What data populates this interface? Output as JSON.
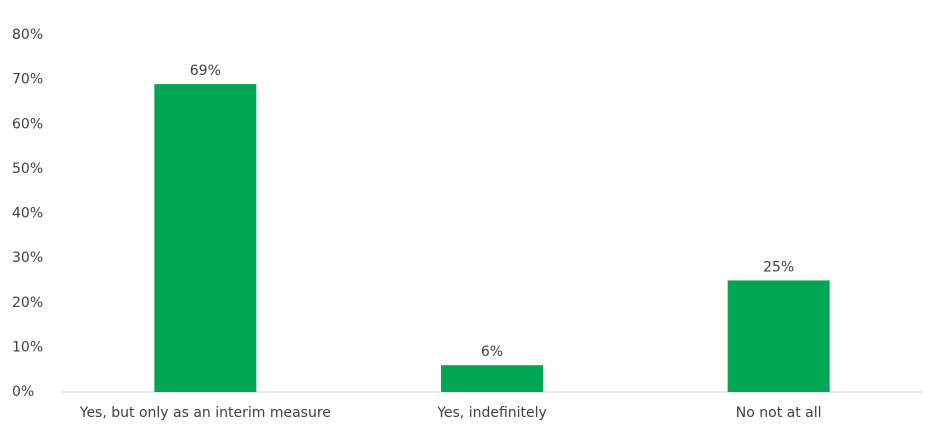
{
  "chart_data": {
    "type": "bar",
    "categories": [
      "Yes, but only as an interim measure",
      "Yes, indefinitely",
      "No not at all"
    ],
    "values": [
      69,
      6,
      25
    ],
    "value_labels": [
      "69%",
      "6%",
      "25%"
    ],
    "color": "#00a651",
    "ylim": [
      0,
      80
    ],
    "yticks": [
      {
        "value": 0,
        "label": "0%"
      },
      {
        "value": 10,
        "label": "10%"
      },
      {
        "value": 20,
        "label": "20%"
      },
      {
        "value": 30,
        "label": "30%"
      },
      {
        "value": 40,
        "label": "40%"
      },
      {
        "value": 50,
        "label": "50%"
      },
      {
        "value": 60,
        "label": "60%"
      },
      {
        "value": 70,
        "label": "70%"
      },
      {
        "value": 80,
        "label": "80%"
      }
    ],
    "grid": false
  }
}
